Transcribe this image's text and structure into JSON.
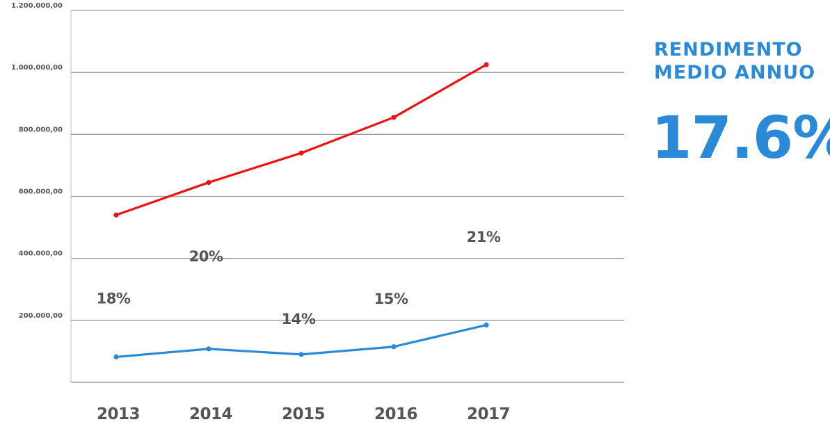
{
  "chart_data": {
    "type": "line",
    "categories": [
      "2013",
      "2014",
      "2015",
      "2016",
      "2017"
    ],
    "y_ticks": [
      "200.000,00",
      "400.000,00",
      "600.000,00",
      "800.000,00",
      "1.000.000,00",
      "1.200.000,00"
    ],
    "ylim": [
      0,
      1200000
    ],
    "grid": true,
    "legend": "none",
    "series": [
      {
        "color": "#ee1111",
        "values": [
          540000,
          645000,
          740000,
          855000,
          1025000
        ]
      },
      {
        "color": "#2a8ad8",
        "values": [
          82000,
          108000,
          90000,
          115000,
          185000
        ]
      }
    ],
    "annotations": [
      {
        "text": "18%",
        "x": "2013",
        "y": 255000
      },
      {
        "text": "20%",
        "x": "2014",
        "y": 390000
      },
      {
        "text": "14%",
        "x": "2015",
        "y": 188000
      },
      {
        "text": "15%",
        "x": "2016",
        "y": 253000
      },
      {
        "text": "21%",
        "x": "2017",
        "y": 453000
      }
    ]
  },
  "side": {
    "title_line1": "RENDIMENTO",
    "title_line2": "MEDIO ANNUO",
    "value": "17.6%",
    "color": "#2a8ad8"
  }
}
